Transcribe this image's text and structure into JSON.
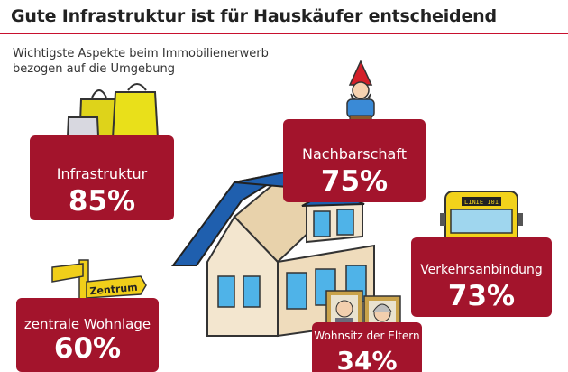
{
  "title": "Gute Infrastruktur ist für Hauskäufer entscheidend",
  "subtitle_line1": "Wichtigste Aspekte beim Immobilienerwerb",
  "subtitle_line2": "bezogen auf die Umgebung",
  "colors": {
    "badge": "#a3142c",
    "accent_line": "#c8102e",
    "roof": "#1f5fae",
    "house_wall": "#f3e6cf",
    "window": "#4fb3e8",
    "bus": "#f2d21b",
    "sign": "#f0cf1a",
    "bag_yellow": "#e9e01a"
  },
  "chart_data": {
    "type": "table",
    "title": "Gute Infrastruktur ist für Hauskäufer entscheidend",
    "subtitle": "Wichtigste Aspekte beim Immobilienerwerb bezogen auf die Umgebung",
    "categories": [
      "Infrastruktur",
      "Nachbarschaft",
      "Verkehrsanbindung",
      "zentrale Wohnlage",
      "Wohnsitz der Eltern"
    ],
    "values": [
      85,
      75,
      73,
      60,
      34
    ],
    "value_labels": [
      "85%",
      "75%",
      "73%",
      "60%",
      "34%"
    ],
    "unit": "%"
  },
  "illustrations": {
    "bus_sign": "LINIE 101",
    "street_sign": "Zentrum"
  },
  "icons": [
    "shopping-bags-icon",
    "garden-gnome-icon",
    "bus-icon",
    "street-sign-icon",
    "parents-portraits-icon",
    "house-icon"
  ]
}
